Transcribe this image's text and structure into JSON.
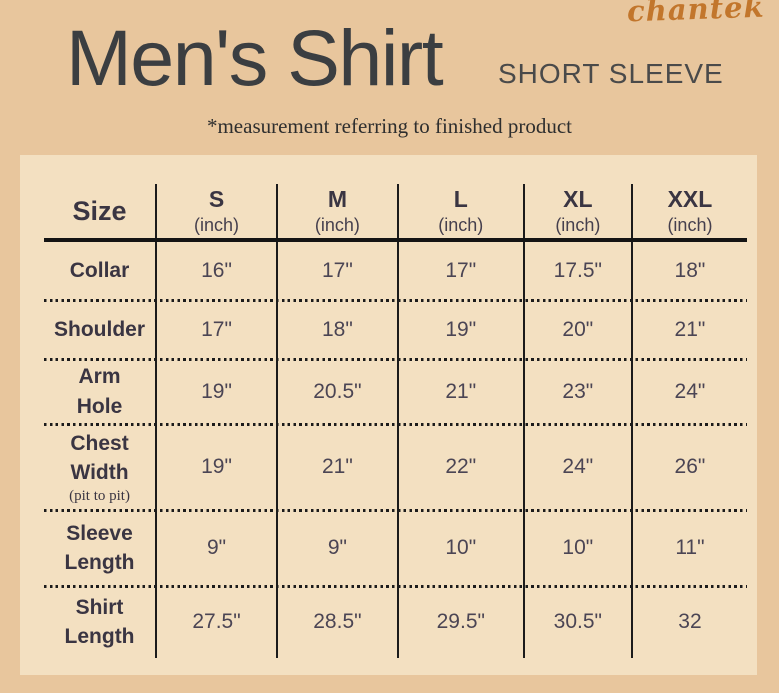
{
  "brand_logo": "chantek",
  "title": "Men's Shirt",
  "subtitle": "SHORT SLEEVE",
  "note": "*measurement referring to finished product",
  "chart_data": {
    "type": "table",
    "corner_label": "Size",
    "unit_label": "(inch)",
    "columns": [
      "S",
      "M",
      "L",
      "XL",
      "XXL"
    ],
    "rows": [
      {
        "label": "Collar",
        "display_label": "Collar",
        "values": [
          "16\"",
          "17\"",
          "17\"",
          "17.5\"",
          "18\""
        ]
      },
      {
        "label": "Shoulder",
        "display_label": "Shoulder",
        "values": [
          "17\"",
          "18\"",
          "19\"",
          "20\"",
          "21\""
        ]
      },
      {
        "label": "Arm Hole",
        "display_label": "Arm\nHole",
        "values": [
          "19\"",
          "20.5\"",
          "21\"",
          "23\"",
          "24\""
        ]
      },
      {
        "label": "Chest Width",
        "display_label": "Chest\nWidth",
        "sublabel": "(pit to pit)",
        "values": [
          "19\"",
          "21\"",
          "22\"",
          "24\"",
          "26\""
        ]
      },
      {
        "label": "Sleeve Length",
        "display_label": "Sleeve\nLength",
        "values": [
          "9\"",
          "9\"",
          "10\"",
          "10\"",
          "11\""
        ]
      },
      {
        "label": "Shirt Length",
        "display_label": "Shirt\nLength",
        "values": [
          "27.5\"",
          "28.5\"",
          "29.5\"",
          "30.5\"",
          "32"
        ]
      }
    ]
  },
  "colors": {
    "background": "#e8c69d",
    "panel": "#f3e0c1",
    "heading_ink": "#3a3542",
    "value_ink": "#4b4554",
    "line": "#1b1b1b",
    "title": "#3b3e41",
    "subtitle": "#4a4a4a",
    "logo": "#c2762c"
  }
}
